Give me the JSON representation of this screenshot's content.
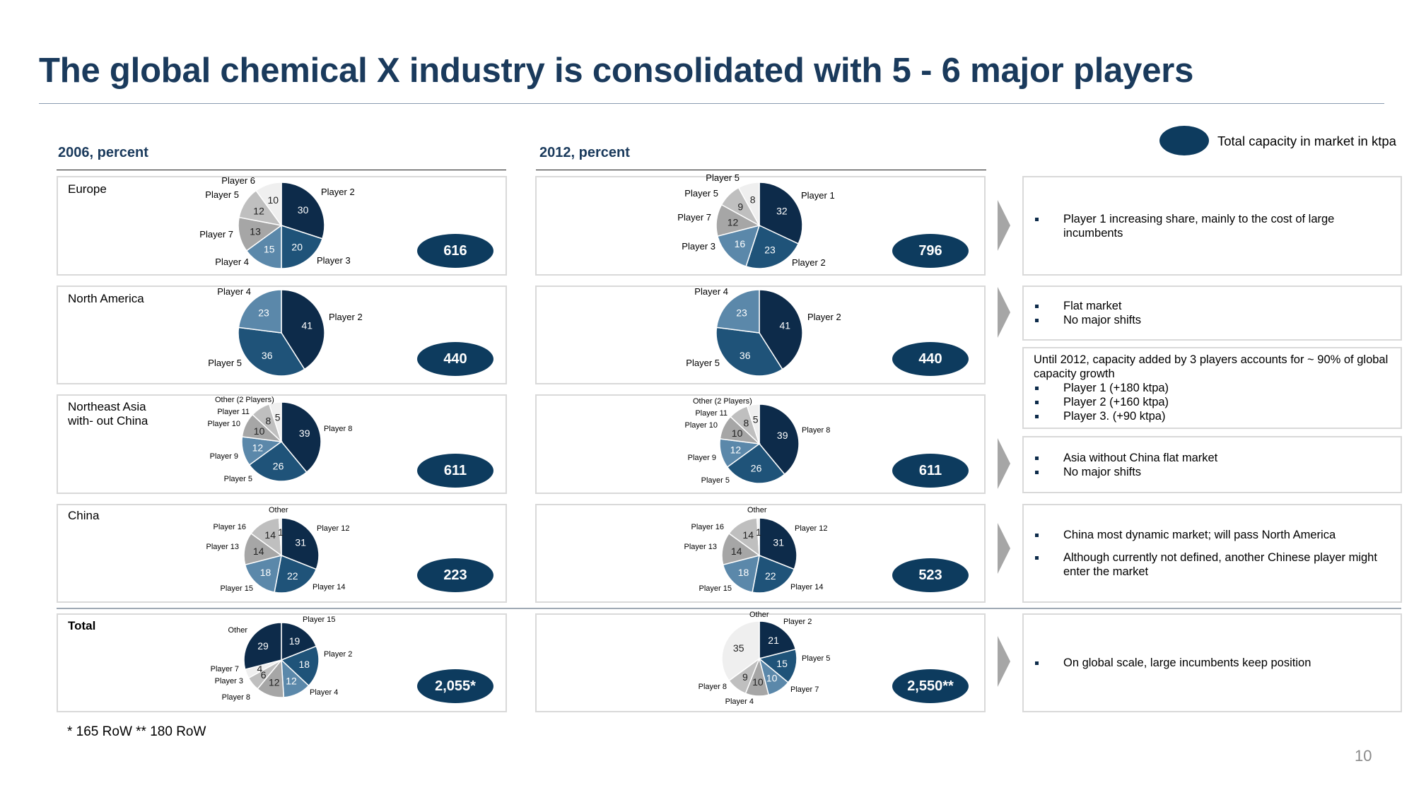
{
  "title": "The global chemical X industry is consolidated with 5 - 6 major players",
  "legend": {
    "label": "Total capacity in market in ktpa"
  },
  "columns": [
    "2006, percent",
    "2012, percent"
  ],
  "footnote": "* 165 RoW  ** 180 RoW",
  "page_number": "10",
  "colors": {
    "c1": "#0d2b4a",
    "c2": "#1f5379",
    "c3": "#5b88aa",
    "c4": "#a6a6a6",
    "c5": "#bfbfbf",
    "c6": "#d9d9d9",
    "c7": "#efefef",
    "title": "#1a3a5c",
    "oval": "#0d3b5e"
  },
  "chart_data": [
    {
      "type": "pie",
      "region": "Europe",
      "year": "2006",
      "total": "616",
      "labels": [
        "Player 2",
        "Player 3",
        "Player 4",
        "Player 7",
        "Player 5",
        "Player 6"
      ],
      "values": [
        30,
        20,
        15,
        13,
        12,
        10
      ]
    },
    {
      "type": "pie",
      "region": "North America",
      "year": "2006",
      "total": "440",
      "labels": [
        "Player 2",
        "Player 5",
        "Player 4"
      ],
      "values": [
        41,
        36,
        23
      ]
    },
    {
      "type": "pie",
      "region": "Northeast Asia with- out China",
      "year": "2006",
      "total": "611",
      "labels": [
        "Player 8",
        "Player 5",
        "Player 9",
        "Player 10",
        "Player 11",
        "Other (2 Players)"
      ],
      "values": [
        39,
        26,
        12,
        10,
        8,
        5
      ]
    },
    {
      "type": "pie",
      "region": "China",
      "year": "2006",
      "total": "223",
      "labels": [
        "Player 12",
        "Player 14",
        "Player 15",
        "Player 13",
        "Player 16",
        "Other"
      ],
      "values": [
        31,
        22,
        18,
        14,
        14,
        1
      ]
    },
    {
      "type": "pie",
      "region": "Total",
      "year": "2006",
      "total": "2,055*",
      "labels": [
        "Player 15",
        "Player 2",
        "Player 4",
        "Player 8",
        "Player 3",
        "Player 7",
        "Other"
      ],
      "values": [
        19,
        18,
        12,
        12,
        6,
        4,
        29
      ]
    },
    {
      "type": "pie",
      "region": "Europe",
      "year": "2012",
      "total": "796",
      "labels": [
        "Player 1",
        "Player 2",
        "Player 3",
        "Player 7",
        "Player 5",
        "Player 5"
      ],
      "values": [
        32,
        23,
        16,
        12,
        9,
        8
      ]
    },
    {
      "type": "pie",
      "region": "North America",
      "year": "2012",
      "total": "440",
      "labels": [
        "Player 2",
        "Player 5",
        "Player 4"
      ],
      "values": [
        41,
        36,
        23
      ]
    },
    {
      "type": "pie",
      "region": "Northeast Asia",
      "year": "2012",
      "total": "611",
      "labels": [
        "Player 8",
        "Player 5",
        "Player 9",
        "Player 10",
        "Player 11",
        "Other (2 Players)"
      ],
      "values": [
        39,
        26,
        12,
        10,
        8,
        5
      ]
    },
    {
      "type": "pie",
      "region": "China",
      "year": "2012",
      "total": "523",
      "labels": [
        "Player 12",
        "Player 14",
        "Player 15",
        "Player 13",
        "Player 16",
        "Other"
      ],
      "values": [
        31,
        22,
        18,
        14,
        14,
        1
      ]
    },
    {
      "type": "pie",
      "region": "Total",
      "year": "2012",
      "total": "2,550**",
      "labels": [
        "Player 2",
        "Player 5",
        "Player 7",
        "Player 4",
        "Player 8",
        "Other"
      ],
      "values": [
        21,
        15,
        10,
        10,
        9,
        35
      ]
    }
  ],
  "comments": [
    {
      "bullets": [
        "Player 1 increasing share, mainly to the cost of large incumbents"
      ]
    },
    {
      "bullets": [
        "Flat market",
        "No major shifts"
      ]
    },
    {
      "text": "Until 2012, capacity added by 3 players accounts for ~ 90% of global capacity growth",
      "bullets": [
        "Player 1 (+180 ktpa)",
        "Player 2 (+160 ktpa)",
        "Player 3. (+90 ktpa)"
      ]
    },
    {
      "bullets": [
        "Asia without China flat market",
        "No major shifts"
      ]
    },
    {
      "bullets": [
        "China most dynamic market; will pass North America",
        "Although currently not defined, another Chinese player might enter the market"
      ]
    },
    {
      "bullets": [
        "On global scale, large incumbents keep position"
      ]
    }
  ]
}
